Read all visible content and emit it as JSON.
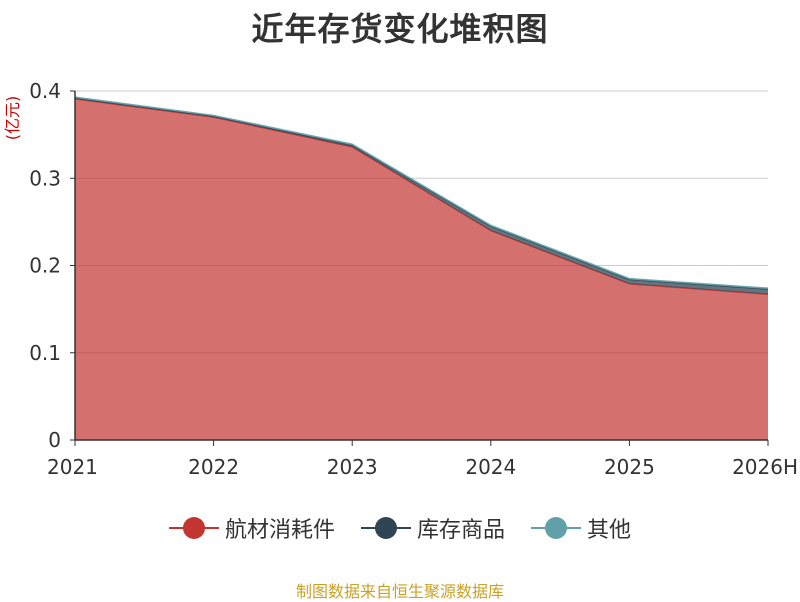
{
  "chart_data": {
    "type": "area",
    "stacked": true,
    "title": "近年存货变化堆积图",
    "ylabel": "(亿元)",
    "xlabel": "",
    "x": [
      "2021",
      "2022",
      "2023",
      "2024",
      "2025",
      "2026H"
    ],
    "ylim": [
      0,
      0.4
    ],
    "yticks": [
      "0",
      "0.1",
      "0.2",
      "0.3",
      "0.4"
    ],
    "grid": true,
    "legend_position": "bottom",
    "series": [
      {
        "name": "航材消耗件",
        "color": "#c23531",
        "values": [
          0.391,
          0.37,
          0.336,
          0.24,
          0.179,
          0.167
        ]
      },
      {
        "name": "库存商品",
        "color": "#2f4554",
        "values": [
          0.001,
          0.001,
          0.002,
          0.005,
          0.005,
          0.006
        ]
      },
      {
        "name": "其他",
        "color": "#61a0a8",
        "values": [
          0.001,
          0.001,
          0.001,
          0.001,
          0.001,
          0.001
        ]
      }
    ]
  },
  "footer": {
    "source": "制图数据来自恒生聚源数据库"
  }
}
